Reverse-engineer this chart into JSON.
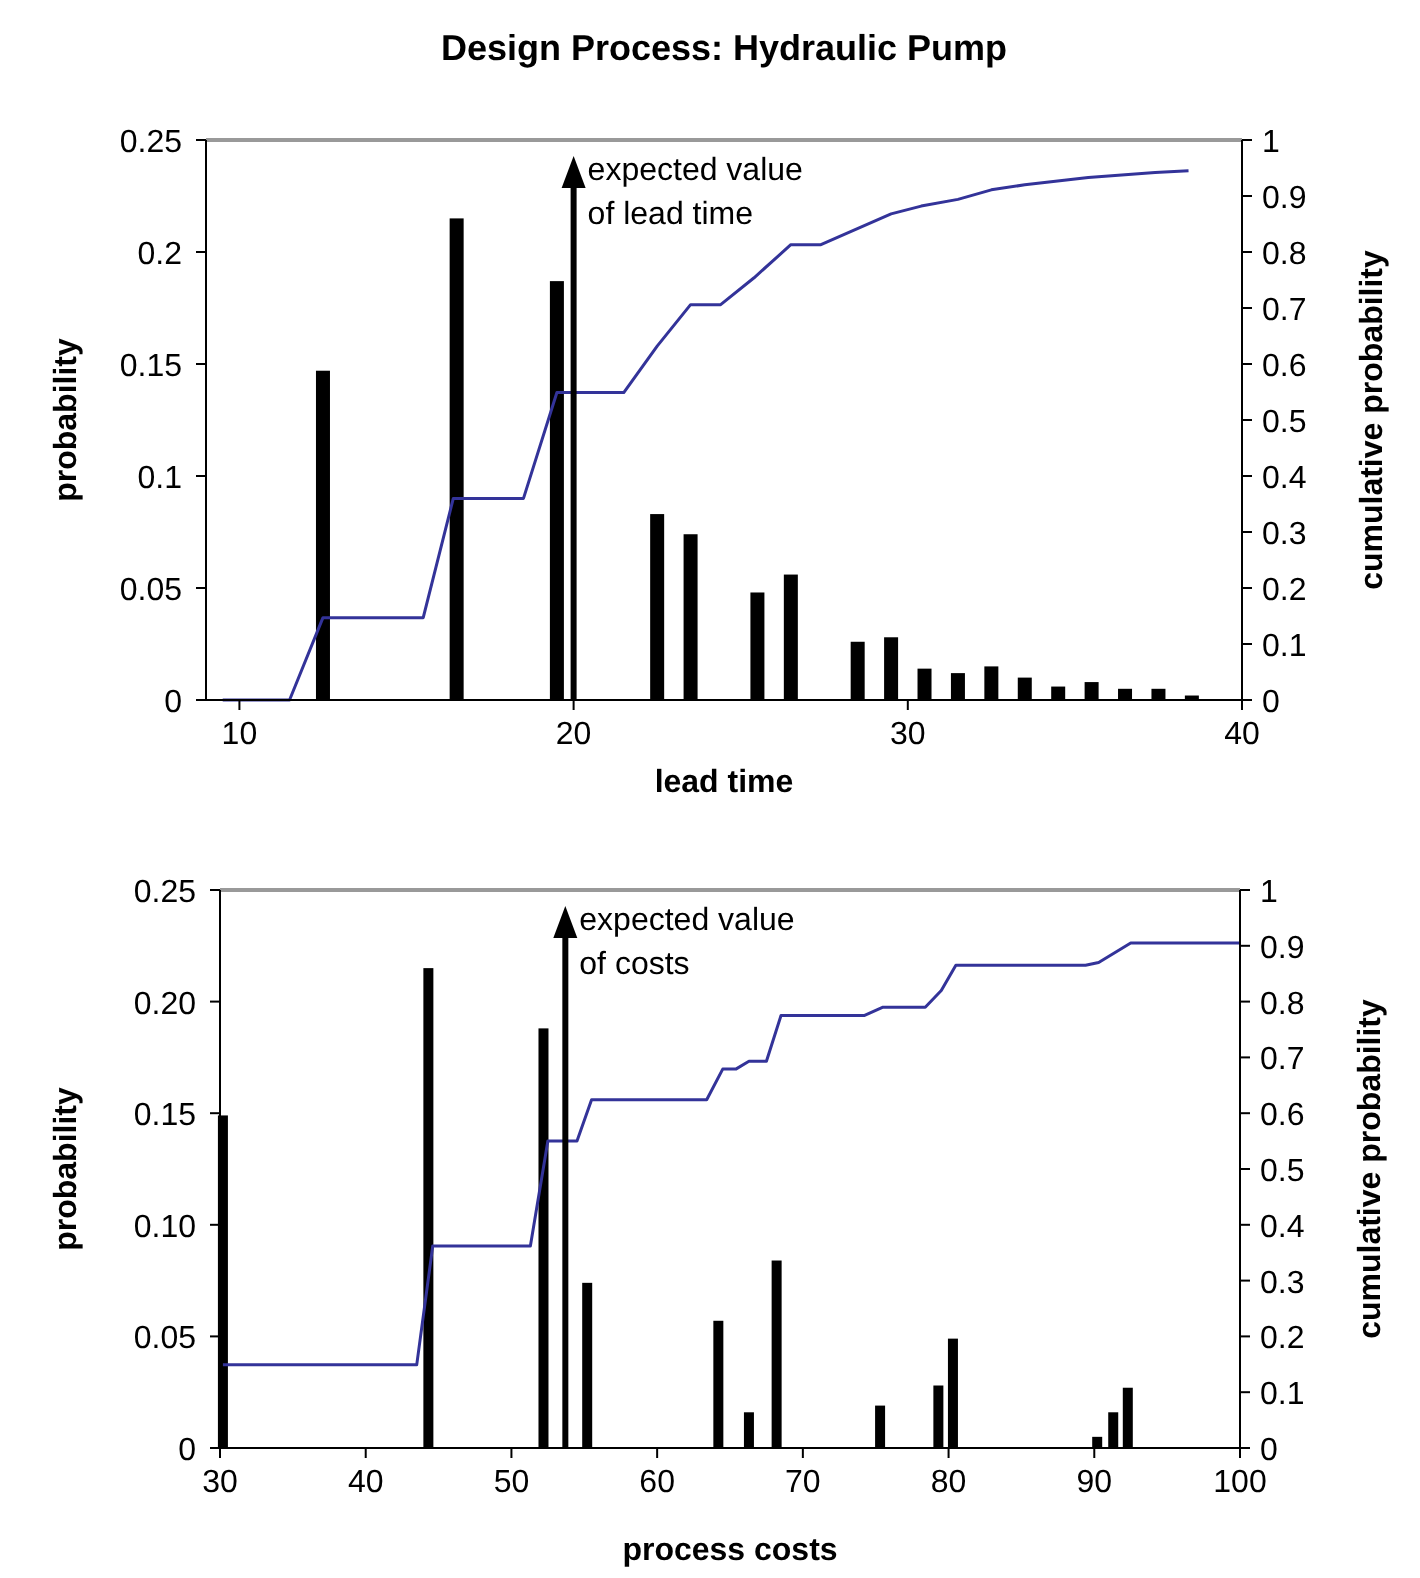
{
  "chart_data": [
    {
      "type": "bar",
      "title": "Design Process: Hydraulic Pump",
      "xlabel": "lead time",
      "ylabel": "probability",
      "y2label": "cumulative probability",
      "xlim": [
        9,
        40
      ],
      "xticks": [
        10,
        20,
        30,
        40
      ],
      "ylim": [
        0,
        0.25
      ],
      "yticks": [
        0,
        0.05,
        0.1,
        0.15,
        0.2,
        0.25
      ],
      "y2lim": [
        0,
        1
      ],
      "y2ticks": [
        0,
        0.1,
        0.2,
        0.3,
        0.4,
        0.5,
        0.6,
        0.7,
        0.8,
        0.9,
        1
      ],
      "grid": false,
      "series": [
        {
          "color": "#000000",
          "x": [
            12.5,
            16.5,
            19.5,
            22.5,
            23.5,
            25.5,
            26.5,
            28.5,
            29.5,
            30.5,
            31.5,
            32.5,
            33.5,
            34.5,
            35.5,
            36.5,
            37.5,
            38.5
          ],
          "values": [
            0.147,
            0.215,
            0.187,
            0.083,
            0.074,
            0.048,
            0.056,
            0.026,
            0.028,
            0.014,
            0.012,
            0.015,
            0.01,
            0.006,
            0.008,
            0.005,
            0.005,
            0.002
          ]
        },
        {
          "type": "line",
          "axis": "y2",
          "color": "#333399",
          "x": [
            9.5,
            11.5,
            12.5,
            15.5,
            16.4,
            18.5,
            19.5,
            21.5,
            22.5,
            23.5,
            24.4,
            25.4,
            26.5,
            27.4,
            29.5,
            30.4,
            31.5,
            32.5,
            33.5,
            35.4,
            37.4,
            38.4
          ],
          "values": [
            0,
            0,
            0.147,
            0.147,
            0.36,
            0.36,
            0.549,
            0.549,
            0.632,
            0.706,
            0.706,
            0.754,
            0.813,
            0.813,
            0.868,
            0.882,
            0.894,
            0.911,
            0.92,
            0.933,
            0.942,
            0.945
          ]
        }
      ],
      "ref_lines": [
        {
          "axis": "x",
          "value": 20,
          "label": "expected value of lead time",
          "color": "#000000"
        }
      ]
    },
    {
      "type": "bar",
      "xlabel": "process costs",
      "ylabel": "probability",
      "y2label": "cumulative probability",
      "xlim": [
        30,
        100
      ],
      "xticks": [
        30,
        40,
        50,
        60,
        70,
        80,
        90,
        100
      ],
      "ylim": [
        0,
        0.25
      ],
      "yticks": [
        0,
        {
          "value": 0.05,
          "label": "0.05"
        },
        {
          "value": 0.1,
          "label": "0.10"
        },
        {
          "value": 0.15,
          "label": "0.15"
        },
        {
          "value": 0.2,
          "label": "0.20"
        },
        {
          "value": 0.25,
          "label": "0.25"
        }
      ],
      "y2lim": [
        0,
        1
      ],
      "y2ticks": [
        0,
        0.1,
        0.2,
        0.3,
        0.4,
        0.5,
        0.6,
        0.7,
        0.8,
        0.9,
        1
      ],
      "grid": false,
      "series": [
        {
          "color": "#000000",
          "x": [
            30.2,
            44.3,
            52.2,
            55.2,
            64.2,
            66.3,
            68.2,
            75.3,
            79.3,
            80.3,
            90.2,
            91.3,
            92.3
          ],
          "values": [
            0.149,
            0.215,
            0.188,
            0.074,
            0.057,
            0.016,
            0.084,
            0.019,
            0.028,
            0.049,
            0.005,
            0.016,
            0.027
          ]
        },
        {
          "type": "line",
          "axis": "y2",
          "color": "#333399",
          "x": [
            30.2,
            43.5,
            44.6,
            51.3,
            52.5,
            54.5,
            55.5,
            63.4,
            64.5,
            65.4,
            66.3,
            67.5,
            68.5,
            74.2,
            75.5,
            78.4,
            79.5,
            80.5,
            89.4,
            90.3,
            92.5,
            100
          ],
          "values": [
            0.149,
            0.149,
            0.362,
            0.362,
            0.55,
            0.55,
            0.624,
            0.624,
            0.679,
            0.679,
            0.693,
            0.693,
            0.775,
            0.775,
            0.79,
            0.79,
            0.82,
            0.865,
            0.865,
            0.87,
            0.905,
            0.905
          ]
        }
      ],
      "ref_lines": [
        {
          "axis": "x",
          "value": 53.7,
          "label": "expected value of costs",
          "color": "#000000"
        }
      ]
    }
  ]
}
